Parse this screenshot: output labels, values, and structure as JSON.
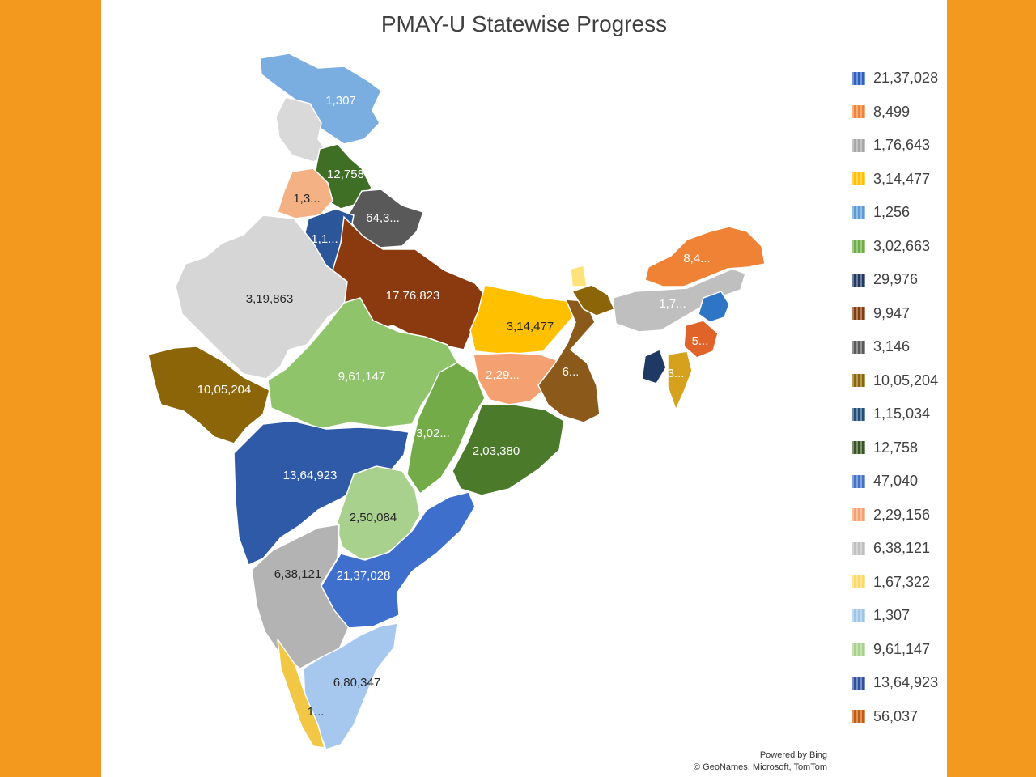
{
  "title": "PMAY-U Statewise Progress",
  "regions": [
    {
      "label": "1,307",
      "color": "#7aaee0",
      "dark": false
    },
    {
      "label": "",
      "color": "#d9d9d9",
      "dark": false
    },
    {
      "label": "12,758",
      "color": "#3f6e25",
      "dark": false
    },
    {
      "label": "1,3...",
      "color": "#f4b183",
      "dark": true
    },
    {
      "label": "64,3...",
      "color": "#595959",
      "dark": false
    },
    {
      "label": "1,1...",
      "color": "#2b579a",
      "dark": false
    },
    {
      "label": "17,76,823",
      "color": "#8b3a0f",
      "dark": false
    },
    {
      "label": "3,19,863",
      "color": "#d6d6d6",
      "dark": true
    },
    {
      "label": "10,05,204",
      "color": "#8b6508",
      "dark": false
    },
    {
      "label": "9,61,147",
      "color": "#8fc46a",
      "dark": false
    },
    {
      "label": "3,14,477",
      "color": "#ffc000",
      "dark": true
    },
    {
      "label": "2,29...",
      "color": "#f4a070",
      "dark": false
    },
    {
      "label": "6...",
      "color": "#8b5a1a",
      "dark": false
    },
    {
      "label": "3,02...",
      "color": "#72ab48",
      "dark": false
    },
    {
      "label": "2,03,380",
      "color": "#4b7a2a",
      "dark": false
    },
    {
      "label": "13,64,923",
      "color": "#2e5aa8",
      "dark": false
    },
    {
      "label": "2,50,084",
      "color": "#a9d18e",
      "dark": true
    },
    {
      "label": "6,38,121",
      "color": "#b3b3b3",
      "dark": true
    },
    {
      "label": "21,37,028",
      "color": "#3f6fcc",
      "dark": false
    },
    {
      "label": "6,80,347",
      "color": "#a7c8ee",
      "dark": true
    },
    {
      "label": "1...",
      "color": "#f2c744",
      "dark": true
    },
    {
      "label": "",
      "color": "#ffe27a",
      "dark": false
    },
    {
      "label": "",
      "color": "#8b6508",
      "dark": false
    },
    {
      "label": "8,4...",
      "color": "#f08235",
      "dark": false
    },
    {
      "label": "1,7...",
      "color": "#bfbfbf",
      "dark": false
    },
    {
      "label": "",
      "color": "#2e75c6",
      "dark": false
    },
    {
      "label": "5...",
      "color": "#e0632a",
      "dark": false
    },
    {
      "label": "",
      "color": "#1f3864",
      "dark": false
    },
    {
      "label": "3...",
      "color": "#d6a21e",
      "dark": false
    }
  ],
  "legend": [
    {
      "label": "21,37,028",
      "color": "#2f5fc0"
    },
    {
      "label": "8,499",
      "color": "#f08235"
    },
    {
      "label": "1,76,643",
      "color": "#a6a6a6"
    },
    {
      "label": "3,14,477",
      "color": "#ffc000"
    },
    {
      "label": "1,256",
      "color": "#5b9bd5"
    },
    {
      "label": "3,02,663",
      "color": "#70ad47"
    },
    {
      "label": "29,976",
      "color": "#1f3864"
    },
    {
      "label": "9,947",
      "color": "#843c0c"
    },
    {
      "label": "3,146",
      "color": "#595959"
    },
    {
      "label": "10,05,204",
      "color": "#8b6508"
    },
    {
      "label": "1,15,034",
      "color": "#1f4e79"
    },
    {
      "label": "12,758",
      "color": "#375623"
    },
    {
      "label": "47,040",
      "color": "#4472c4"
    },
    {
      "label": "2,29,156",
      "color": "#f4a070"
    },
    {
      "label": "6,38,121",
      "color": "#bfbfbf"
    },
    {
      "label": "1,67,322",
      "color": "#ffd966"
    },
    {
      "label": "1,307",
      "color": "#9dc3e6"
    },
    {
      "label": "9,61,147",
      "color": "#a9d18e"
    },
    {
      "label": "13,64,923",
      "color": "#2e4f9e"
    },
    {
      "label": "56,037",
      "color": "#c55a11"
    }
  ],
  "attribution": {
    "line1": "Powered by Bing",
    "line2": "© GeoNames, Microsoft, TomTom"
  }
}
